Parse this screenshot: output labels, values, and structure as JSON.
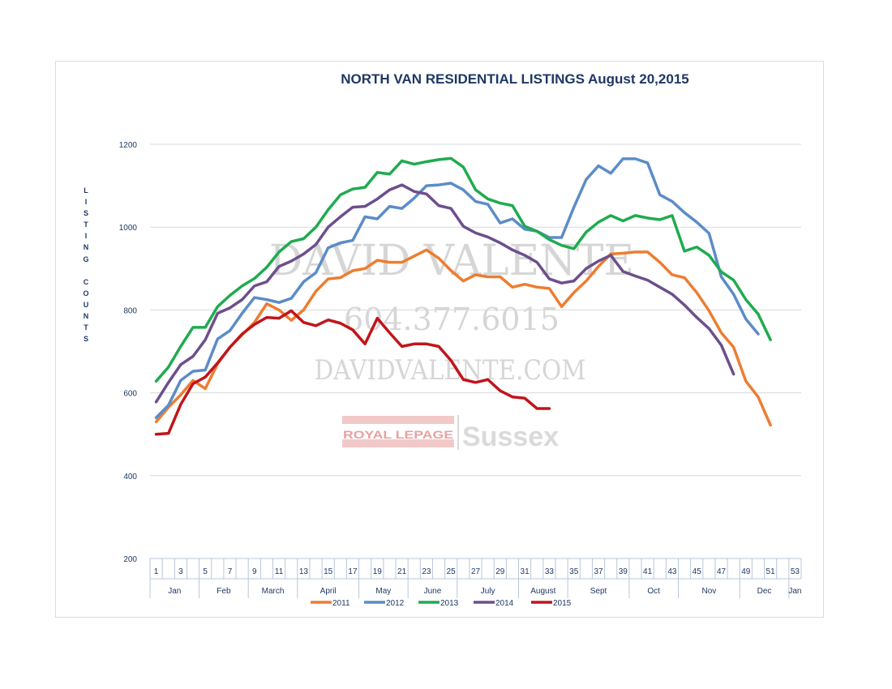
{
  "chart_data": {
    "type": "line",
    "title": "NORTH VAN RESIDENTIAL LISTINGS August 20,2015",
    "ylabel": "LISTING COUNTS",
    "xlabel": "",
    "ylim": [
      200,
      1200
    ],
    "yticks": [
      200,
      400,
      600,
      800,
      1000,
      1200
    ],
    "xlim": [
      1,
      54
    ],
    "xticks": [
      1,
      3,
      5,
      7,
      9,
      11,
      13,
      15,
      17,
      19,
      21,
      23,
      25,
      27,
      29,
      31,
      33,
      35,
      37,
      39,
      41,
      43,
      45,
      47,
      49,
      51,
      53
    ],
    "months": [
      {
        "name": "Jan",
        "start": 1,
        "end": 5
      },
      {
        "name": "Feb",
        "start": 5,
        "end": 9
      },
      {
        "name": "March",
        "start": 9,
        "end": 13
      },
      {
        "name": "April",
        "start": 13,
        "end": 18
      },
      {
        "name": "May",
        "start": 18,
        "end": 22
      },
      {
        "name": "June",
        "start": 22,
        "end": 26
      },
      {
        "name": "July",
        "start": 26,
        "end": 31
      },
      {
        "name": "August",
        "start": 31,
        "end": 35
      },
      {
        "name": "Sept",
        "start": 35,
        "end": 40
      },
      {
        "name": "Oct",
        "start": 40,
        "end": 44
      },
      {
        "name": "Nov",
        "start": 44,
        "end": 49
      },
      {
        "name": "Dec",
        "start": 49,
        "end": 53
      },
      {
        "name": "Jan",
        "start": 53,
        "end": 54
      }
    ],
    "grid": true,
    "legend_position": "bottom",
    "series": [
      {
        "name": "2011",
        "color": "#ed7d31",
        "values": [
          530,
          565,
          595,
          630,
          610,
          670,
          710,
          740,
          770,
          815,
          800,
          775,
          800,
          845,
          875,
          878,
          895,
          900,
          920,
          915,
          915,
          930,
          945,
          925,
          895,
          870,
          885,
          880,
          880,
          855,
          862,
          855,
          852,
          808,
          842,
          870,
          905,
          935,
          937,
          940,
          940,
          915,
          885,
          878,
          842,
          798,
          745,
          710,
          628,
          590,
          522
        ]
      },
      {
        "name": "2012",
        "color": "#5b8cc8",
        "values": [
          540,
          570,
          630,
          652,
          655,
          730,
          750,
          792,
          830,
          825,
          818,
          828,
          868,
          890,
          950,
          962,
          968,
          1025,
          1020,
          1050,
          1045,
          1070,
          1100,
          1102,
          1106,
          1090,
          1062,
          1055,
          1010,
          1020,
          995,
          990,
          975,
          975,
          1048,
          1115,
          1148,
          1130,
          1165,
          1165,
          1155,
          1078,
          1062,
          1035,
          1012,
          985,
          880,
          838,
          778,
          742
        ]
      },
      {
        "name": "2013",
        "color": "#1fab4f",
        "values": [
          628,
          662,
          712,
          758,
          758,
          808,
          835,
          858,
          876,
          903,
          940,
          965,
          972,
          1000,
          1042,
          1078,
          1092,
          1096,
          1132,
          1128,
          1160,
          1152,
          1158,
          1163,
          1166,
          1145,
          1090,
          1068,
          1058,
          1052,
          1002,
          990,
          970,
          956,
          948,
          988,
          1012,
          1028,
          1015,
          1028,
          1022,
          1018,
          1028,
          942,
          952,
          932,
          892,
          872,
          825,
          790,
          728
        ]
      },
      {
        "name": "2014",
        "color": "#6d4f8c",
        "values": [
          578,
          625,
          668,
          688,
          728,
          792,
          805,
          825,
          858,
          868,
          905,
          918,
          935,
          958,
          1000,
          1025,
          1048,
          1050,
          1068,
          1090,
          1102,
          1086,
          1080,
          1052,
          1045,
          1002,
          986,
          976,
          962,
          945,
          932,
          915,
          875,
          865,
          870,
          900,
          918,
          932,
          893,
          882,
          872,
          855,
          838,
          812,
          782,
          755,
          715,
          645
        ]
      },
      {
        "name": "2015",
        "color": "#c0151b",
        "values": [
          500,
          502,
          572,
          622,
          638,
          672,
          710,
          742,
          765,
          782,
          780,
          798,
          770,
          762,
          776,
          768,
          752,
          718,
          780,
          745,
          712,
          718,
          718,
          712,
          678,
          632,
          625,
          632,
          605,
          590,
          587,
          562,
          562
        ]
      }
    ]
  },
  "watermark": {
    "name": "DAVID VALENTE",
    "phone": "604.377.6015",
    "website": "DAVIDVALENTE.COM",
    "logo_left": "ROYAL LEPAGE",
    "logo_right": "Sussex"
  }
}
